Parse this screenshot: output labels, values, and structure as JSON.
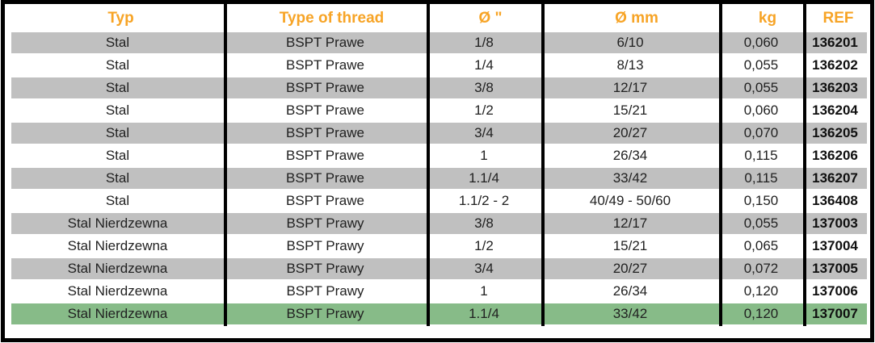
{
  "table": {
    "columns": [
      {
        "id": "typ",
        "label": "Typ"
      },
      {
        "id": "thread",
        "label": "Type of thread"
      },
      {
        "id": "d_in",
        "label": "Ø \""
      },
      {
        "id": "d_mm",
        "label": "Ø mm"
      },
      {
        "id": "kg",
        "label": "kg"
      },
      {
        "id": "ref",
        "label": "REF"
      }
    ],
    "rows": [
      {
        "typ": "Stal",
        "thread": "BSPT Prawe",
        "d_in": "1/8",
        "d_mm": "6/10",
        "kg": "0,060",
        "ref": "136201",
        "bg": "gray"
      },
      {
        "typ": "Stal",
        "thread": "BSPT Prawe",
        "d_in": "1/4",
        "d_mm": "8/13",
        "kg": "0,055",
        "ref": "136202",
        "bg": "white"
      },
      {
        "typ": "Stal",
        "thread": "BSPT Prawe",
        "d_in": "3/8",
        "d_mm": "12/17",
        "kg": "0,055",
        "ref": "136203",
        "bg": "gray"
      },
      {
        "typ": "Stal",
        "thread": "BSPT Prawe",
        "d_in": "1/2",
        "d_mm": "15/21",
        "kg": "0,060",
        "ref": "136204",
        "bg": "white"
      },
      {
        "typ": "Stal",
        "thread": "BSPT Prawe",
        "d_in": "3/4",
        "d_mm": "20/27",
        "kg": "0,070",
        "ref": "136205",
        "bg": "gray"
      },
      {
        "typ": "Stal",
        "thread": "BSPT Prawe",
        "d_in": "1",
        "d_mm": "26/34",
        "kg": "0,115",
        "ref": "136206",
        "bg": "white"
      },
      {
        "typ": "Stal",
        "thread": "BSPT Prawe",
        "d_in": "1.1/4",
        "d_mm": "33/42",
        "kg": "0,115",
        "ref": "136207",
        "bg": "gray"
      },
      {
        "typ": "Stal",
        "thread": "BSPT Prawe",
        "d_in": "1.1/2 - 2",
        "d_mm": "40/49 - 50/60",
        "kg": "0,150",
        "ref": "136408",
        "bg": "white"
      },
      {
        "typ": "Stal Nierdzewna",
        "thread": "BSPT Prawy",
        "d_in": "3/8",
        "d_mm": "12/17",
        "kg": "0,055",
        "ref": "137003",
        "bg": "gray"
      },
      {
        "typ": "Stal Nierdzewna",
        "thread": "BSPT Prawy",
        "d_in": "1/2",
        "d_mm": "15/21",
        "kg": "0,065",
        "ref": "137004",
        "bg": "white"
      },
      {
        "typ": "Stal Nierdzewna",
        "thread": "BSPT Prawy",
        "d_in": "3/4",
        "d_mm": "20/27",
        "kg": "0,072",
        "ref": "137005",
        "bg": "gray"
      },
      {
        "typ": "Stal Nierdzewna",
        "thread": "BSPT Prawy",
        "d_in": "1",
        "d_mm": "26/34",
        "kg": "0,120",
        "ref": "137006",
        "bg": "white"
      },
      {
        "typ": "Stal Nierdzewna",
        "thread": "BSPT Prawy",
        "d_in": "1.1/4",
        "d_mm": "33/42",
        "kg": "0,120",
        "ref": "137007",
        "bg": "green"
      }
    ],
    "colors": {
      "header_text": "#F7A426",
      "row_gray": "#C0C0C0",
      "row_highlight_green": "#87BB88",
      "border": "#000000",
      "cell_text": "#212121"
    }
  }
}
